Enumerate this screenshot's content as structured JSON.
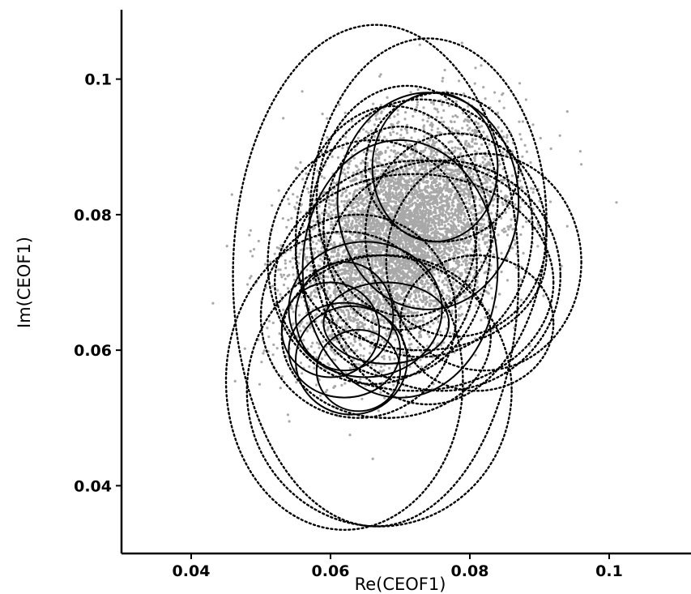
{
  "chart_data": {
    "type": "scatter",
    "title": "",
    "xlabel": "Re(CEOF1)",
    "ylabel": "Im(CEOF1)",
    "xlim": [
      0.03,
      0.11
    ],
    "ylim": [
      0.03,
      0.11
    ],
    "xticks": [
      0.04,
      0.06,
      0.08,
      0.1
    ],
    "xtick_labels": [
      "0.04",
      "0.06",
      "0.08",
      "0.1"
    ],
    "yticks": [
      0.04,
      0.06,
      0.08,
      0.1
    ],
    "ytick_labels": [
      "0.04",
      "0.06",
      "0.08",
      "0.1"
    ],
    "grid": false,
    "legend": "none",
    "colors": {
      "points": "#a8a8a8",
      "ellipses": "#000000",
      "axes": "#000000"
    },
    "point_cloud": {
      "center": [
        0.0702,
        0.0765
      ],
      "spread": [
        0.0072,
        0.0082
      ],
      "correlation": 0.35,
      "count": 6000
    },
    "ellipses": [
      {
        "center": [
          0.0665,
          0.071
        ],
        "radii": [
          0.0205,
          0.037
        ],
        "style": "dotted"
      },
      {
        "center": [
          0.074,
          0.079
        ],
        "radii": [
          0.017,
          0.027
        ],
        "style": "dotted"
      },
      {
        "center": [
          0.062,
          0.0555
        ],
        "radii": [
          0.017,
          0.022
        ],
        "style": "dotted"
      },
      {
        "center": [
          0.067,
          0.054
        ],
        "radii": [
          0.019,
          0.02
        ],
        "style": "dotted"
      },
      {
        "center": [
          0.082,
          0.073
        ],
        "radii": [
          0.014,
          0.016
        ],
        "style": "dotted"
      },
      {
        "center": [
          0.073,
          0.078
        ],
        "radii": [
          0.016,
          0.019
        ],
        "style": "dotted"
      },
      {
        "center": [
          0.069,
          0.076
        ],
        "radii": [
          0.014,
          0.02
        ],
        "style": "dotted"
      },
      {
        "center": [
          0.076,
          0.071
        ],
        "radii": [
          0.017,
          0.017
        ],
        "style": "dotted"
      },
      {
        "center": [
          0.064,
          0.065
        ],
        "radii": [
          0.014,
          0.015
        ],
        "style": "dotted"
      },
      {
        "center": [
          0.071,
          0.082
        ],
        "radii": [
          0.013,
          0.017
        ],
        "style": "dotted"
      },
      {
        "center": [
          0.068,
          0.062
        ],
        "radii": [
          0.015,
          0.012
        ],
        "style": "dotted"
      },
      {
        "center": [
          0.078,
          0.077
        ],
        "radii": [
          0.013,
          0.015
        ],
        "style": "dotted"
      },
      {
        "center": [
          0.072,
          0.07
        ],
        "radii": [
          0.02,
          0.016
        ],
        "style": "dotted"
      },
      {
        "center": [
          0.076,
          0.087
        ],
        "radii": [
          0.011,
          0.011
        ],
        "style": "dotted"
      },
      {
        "center": [
          0.07,
          0.078
        ],
        "radii": [
          0.011,
          0.015
        ],
        "style": "dotted"
      },
      {
        "center": [
          0.073,
          0.074
        ],
        "radii": [
          0.018,
          0.014
        ],
        "style": "dotted"
      },
      {
        "center": [
          0.066,
          0.073
        ],
        "radii": [
          0.015,
          0.018
        ],
        "style": "dotted"
      },
      {
        "center": [
          0.081,
          0.064
        ],
        "radii": [
          0.011,
          0.01
        ],
        "style": "dotted"
      },
      {
        "center": [
          0.062,
          0.06
        ],
        "radii": [
          0.008,
          0.007
        ],
        "style": "solid"
      },
      {
        "center": [
          0.063,
          0.0585
        ],
        "radii": [
          0.008,
          0.008
        ],
        "style": "solid"
      },
      {
        "center": [
          0.064,
          0.057
        ],
        "radii": [
          0.006,
          0.006
        ],
        "style": "solid"
      },
      {
        "center": [
          0.06,
          0.063
        ],
        "radii": [
          0.007,
          0.007
        ],
        "style": "solid"
      },
      {
        "center": [
          0.062,
          0.065
        ],
        "radii": [
          0.007,
          0.008
        ],
        "style": "solid"
      },
      {
        "center": [
          0.075,
          0.087
        ],
        "radii": [
          0.009,
          0.011
        ],
        "style": "solid"
      },
      {
        "center": [
          0.074,
          0.082
        ],
        "radii": [
          0.013,
          0.016
        ],
        "style": "solid"
      },
      {
        "center": [
          0.07,
          0.072
        ],
        "radii": [
          0.014,
          0.019
        ],
        "style": "solid"
      },
      {
        "center": [
          0.065,
          0.066
        ],
        "radii": [
          0.011,
          0.01
        ],
        "style": "solid"
      },
      {
        "center": [
          0.068,
          0.064
        ],
        "radii": [
          0.009,
          0.006
        ],
        "style": "solid"
      }
    ]
  }
}
